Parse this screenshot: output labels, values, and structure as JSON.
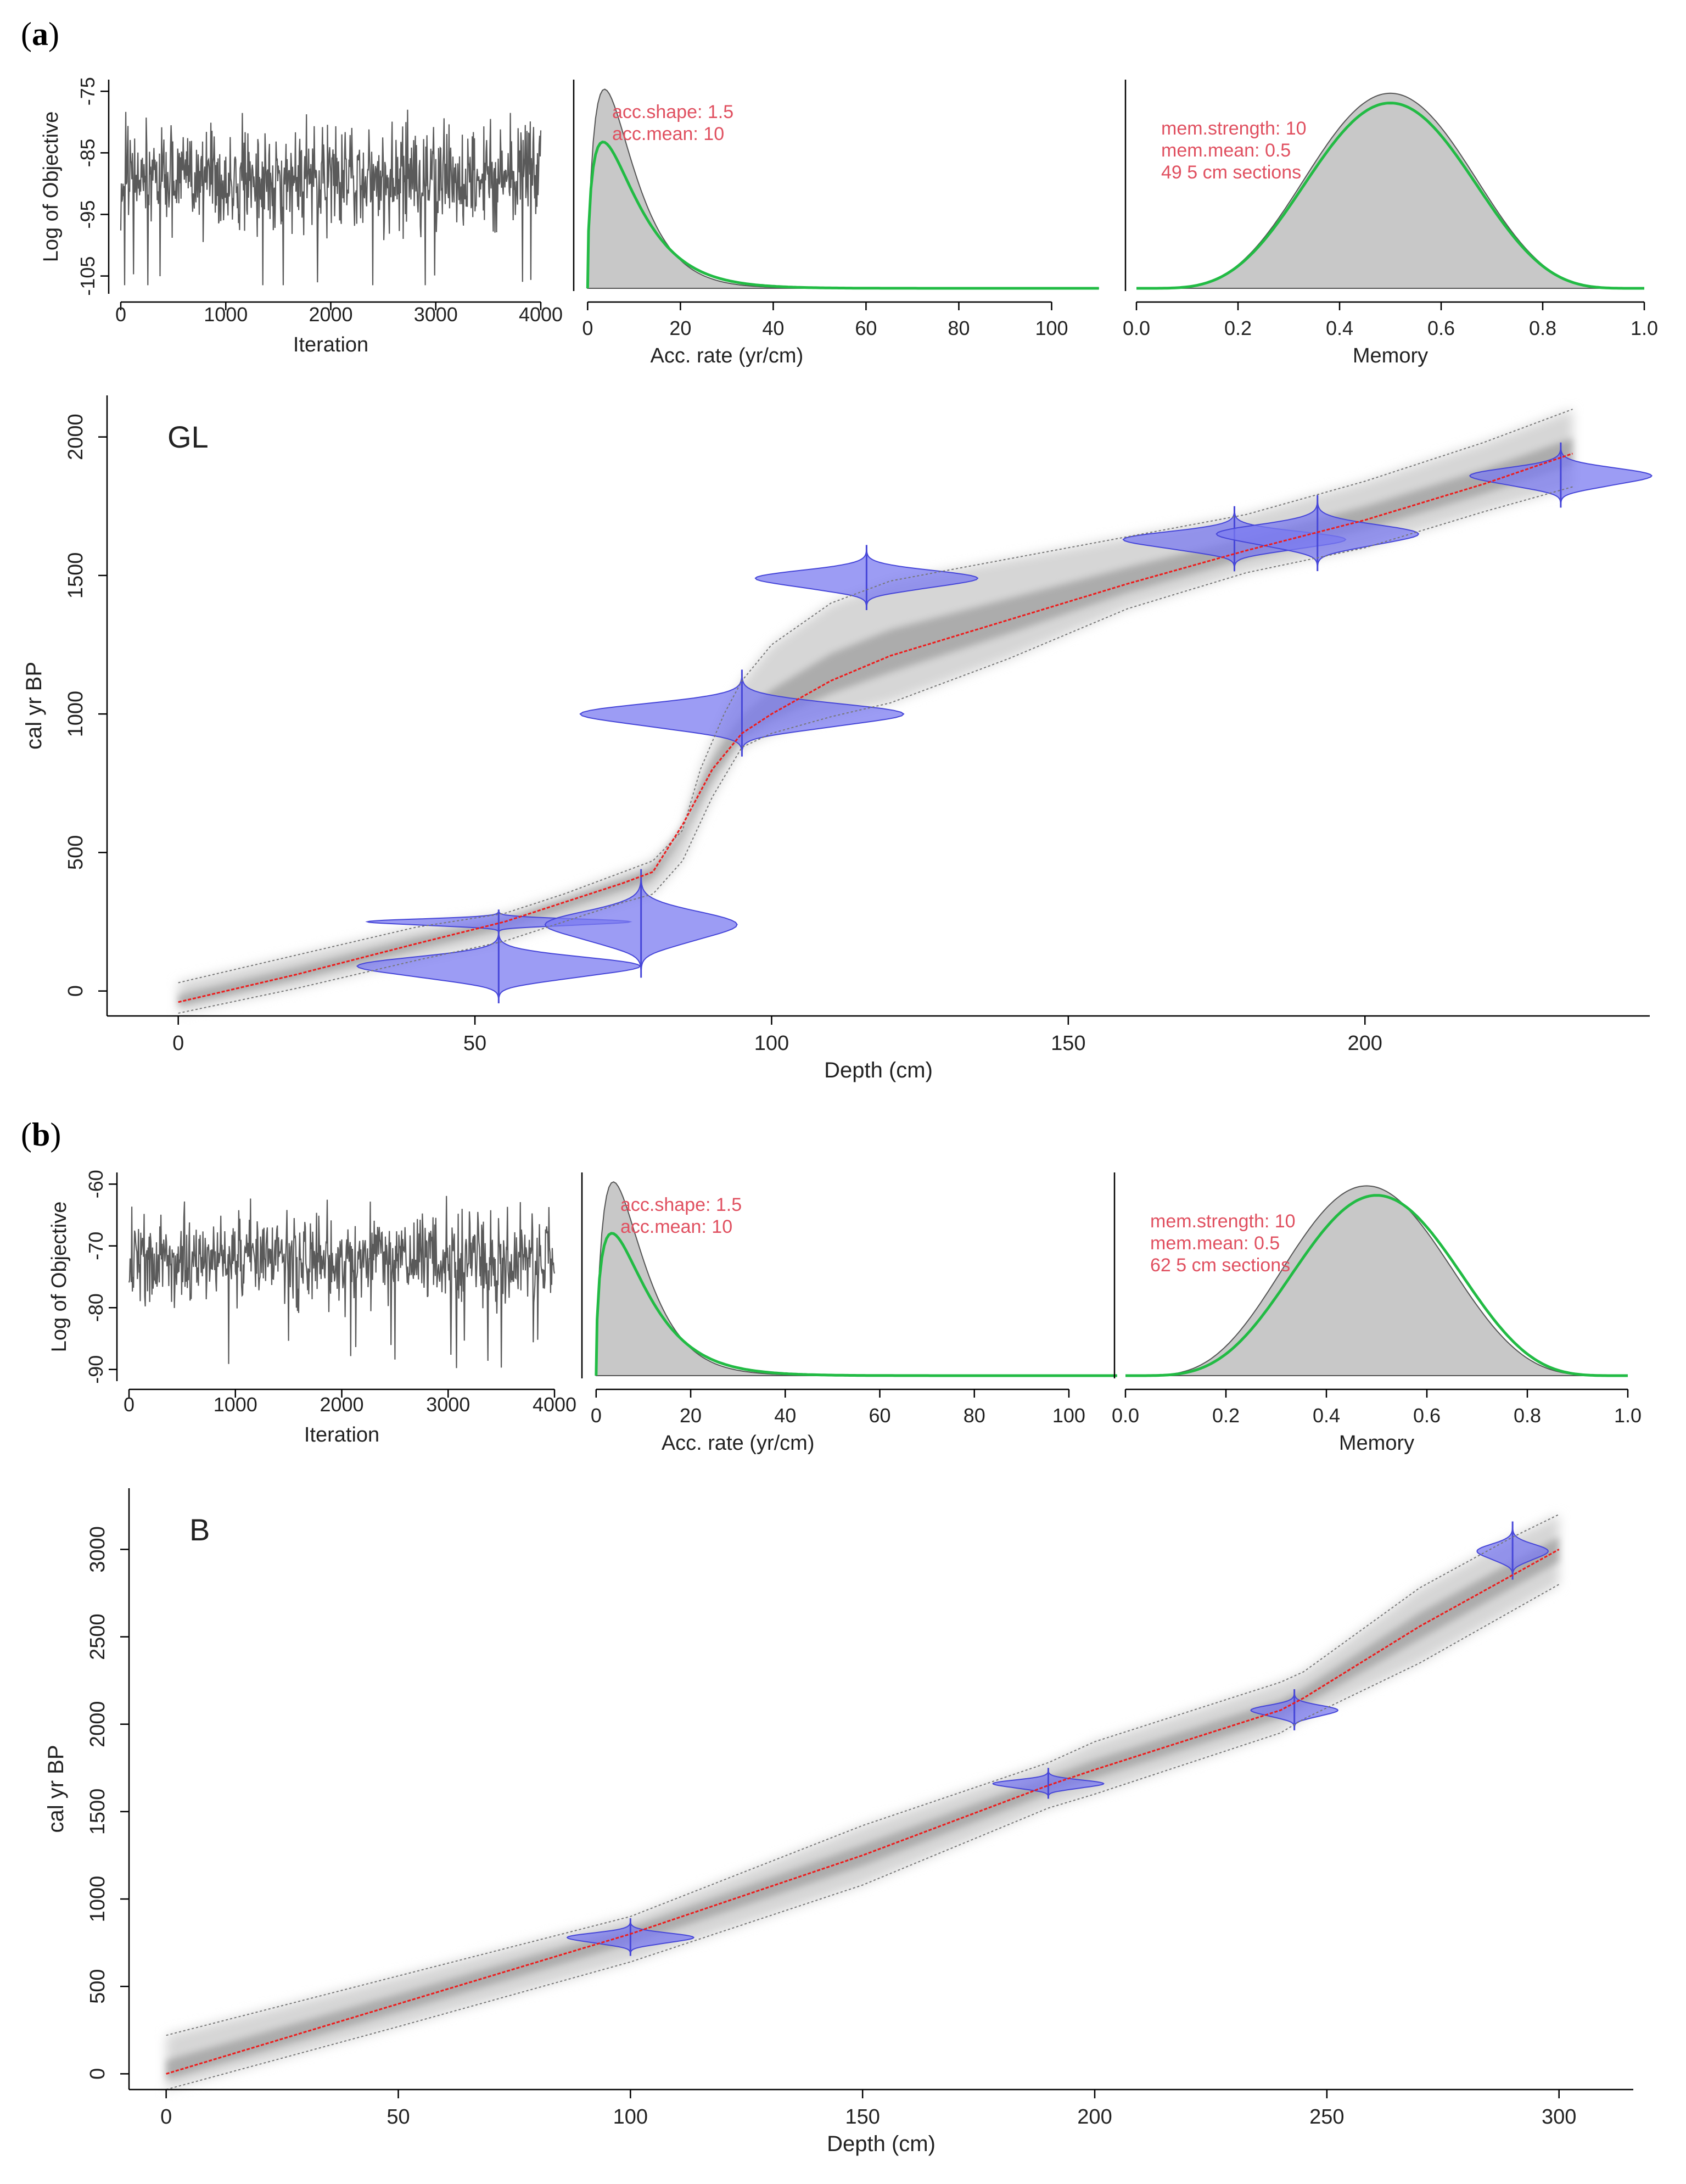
{
  "figure": {
    "panels": [
      {
        "letter_open": "(",
        "letter": "a",
        "letter_close": ")",
        "core_label": "GL",
        "iter_plot": {
          "ylabel": "Log of Objective",
          "xlabel": "Iteration",
          "xticks": [
            0,
            1000,
            2000,
            3000,
            4000
          ],
          "yticks": [
            -75,
            -85,
            -95,
            -105
          ],
          "xlim": [
            0,
            4000
          ],
          "ylim": [
            -107,
            -74
          ],
          "mean": -89,
          "spread": 6
        },
        "acc_plot": {
          "xlabel": "Acc. rate (yr/cm)",
          "xticks": [
            0,
            20,
            40,
            60,
            80,
            100
          ],
          "xlim": [
            -3,
            110
          ],
          "annot": [
            "acc.shape:  1.5",
            "acc.mean:  10"
          ],
          "prior_shape": 1.5,
          "prior_mean": 10
        },
        "mem_plot": {
          "xlabel": "Memory",
          "xticks": [
            "0.0",
            "0.2",
            "0.4",
            "0.6",
            "0.8",
            "1.0"
          ],
          "xlim": [
            0,
            1
          ],
          "annot": [
            "mem.strength: 10",
            "mem.mean: 0.5",
            "49 5 cm sections"
          ],
          "post_peak": 0.5
        }
      },
      {
        "letter_open": "(",
        "letter": "b",
        "letter_close": ")",
        "core_label": "B",
        "iter_plot": {
          "ylabel": "Log of Objective",
          "xlabel": "Iteration",
          "xticks": [
            0,
            1000,
            2000,
            3000,
            4000
          ],
          "yticks": [
            -60,
            -70,
            -80,
            -90
          ],
          "xlim": [
            0,
            4000
          ],
          "ylim": [
            -91,
            -59
          ],
          "mean": -72,
          "spread": 5
        },
        "acc_plot": {
          "xlabel": "Acc. rate (yr/cm)",
          "xticks": [
            0,
            20,
            40,
            60,
            80,
            100
          ],
          "xlim": [
            -3,
            105
          ],
          "annot": [
            "acc.shape:  1.5",
            "acc.mean:  10"
          ],
          "prior_shape": 1.5,
          "prior_mean": 10
        },
        "mem_plot": {
          "xlabel": "Memory",
          "xticks": [
            "0.0",
            "0.2",
            "0.4",
            "0.6",
            "0.8",
            "1.0"
          ],
          "xlim": [
            0,
            1
          ],
          "annot": [
            "mem.strength: 10",
            "mem.mean: 0.5",
            "62 5 cm sections"
          ],
          "post_peak": 0.48
        }
      }
    ]
  },
  "chart_data": [
    {
      "type": "line",
      "title": "GL",
      "xlabel": "Depth (cm)",
      "ylabel": "cal yr BP",
      "xlim": [
        -12,
        248
      ],
      "ylim": [
        -90,
        2150
      ],
      "xticks": [
        0,
        50,
        100,
        150,
        200
      ],
      "yticks": [
        0,
        500,
        1000,
        1500,
        2000
      ],
      "series": [
        {
          "name": "mean age-depth",
          "x": [
            0,
            20,
            40,
            55,
            65,
            75,
            80,
            85,
            90,
            95,
            100,
            110,
            120,
            140,
            160,
            180,
            200,
            220,
            235
          ],
          "y": [
            -40,
            60,
            170,
            250,
            320,
            390,
            430,
            600,
            800,
            930,
            1000,
            1120,
            1210,
            1340,
            1470,
            1590,
            1700,
            1830,
            1940
          ]
        },
        {
          "name": "upper 95% range",
          "x": [
            0,
            20,
            40,
            55,
            65,
            75,
            80,
            85,
            88,
            92,
            95,
            100,
            110,
            120,
            140,
            160,
            180,
            200,
            220,
            235
          ],
          "y": [
            30,
            130,
            230,
            280,
            350,
            430,
            470,
            580,
            800,
            1000,
            1120,
            1250,
            1400,
            1480,
            1560,
            1640,
            1720,
            1840,
            1980,
            2100
          ]
        },
        {
          "name": "lower 95% range",
          "x": [
            0,
            20,
            40,
            55,
            65,
            75,
            80,
            85,
            90,
            95,
            100,
            110,
            120,
            140,
            160,
            180,
            200,
            220,
            235
          ],
          "y": [
            -80,
            10,
            110,
            180,
            250,
            320,
            350,
            470,
            700,
            880,
            930,
            990,
            1040,
            1200,
            1380,
            1510,
            1600,
            1730,
            1820
          ]
        }
      ],
      "dates": [
        {
          "depth": 54,
          "age": 250,
          "width": 26,
          "spread": 22
        },
        {
          "depth": 54,
          "age": 90,
          "width": 28,
          "spread": 70
        },
        {
          "depth": 78,
          "age": 240,
          "width": 19,
          "spread": 100
        },
        {
          "depth": 95,
          "age": 1000,
          "width": 32,
          "spread": 80
        },
        {
          "depth": 116,
          "age": 1490,
          "width": 22,
          "spread": 60
        },
        {
          "depth": 178,
          "age": 1630,
          "width": 22,
          "spread": 60
        },
        {
          "depth": 192,
          "age": 1650,
          "width": 20,
          "spread": 70
        },
        {
          "depth": 233,
          "age": 1860,
          "width": 18,
          "spread": 60
        }
      ]
    },
    {
      "type": "line",
      "title": "B",
      "xlabel": "Depth (cm)",
      "ylabel": "cal yr BP",
      "xlim": [
        -8,
        316
      ],
      "ylim": [
        -90,
        3350
      ],
      "xticks": [
        0,
        50,
        100,
        150,
        200,
        250,
        300
      ],
      "yticks": [
        0,
        500,
        1000,
        1500,
        2000,
        2500,
        3000
      ],
      "series": [
        {
          "name": "mean age-depth",
          "x": [
            0,
            50,
            100,
            150,
            190,
            200,
            240,
            245,
            270,
            300
          ],
          "y": [
            0,
            400,
            800,
            1250,
            1650,
            1740,
            2080,
            2150,
            2560,
            3000
          ]
        },
        {
          "name": "upper 95% range",
          "x": [
            0,
            50,
            100,
            150,
            190,
            200,
            240,
            245,
            270,
            290,
            300
          ],
          "y": [
            220,
            560,
            900,
            1420,
            1780,
            1900,
            2240,
            2300,
            2780,
            3070,
            3200
          ]
        },
        {
          "name": "lower 95% range",
          "x": [
            0,
            50,
            100,
            150,
            190,
            200,
            240,
            245,
            270,
            300
          ],
          "y": [
            -90,
            270,
            640,
            1080,
            1520,
            1600,
            1950,
            2030,
            2350,
            2800
          ]
        }
      ],
      "dates": [
        {
          "depth": 100,
          "age": 780,
          "width": 16,
          "spread": 55
        },
        {
          "depth": 190,
          "age": 1660,
          "width": 14,
          "spread": 45
        },
        {
          "depth": 243,
          "age": 2080,
          "width": 11,
          "spread": 60
        },
        {
          "depth": 290,
          "age": 2990,
          "width": 9,
          "spread": 85
        }
      ]
    }
  ]
}
